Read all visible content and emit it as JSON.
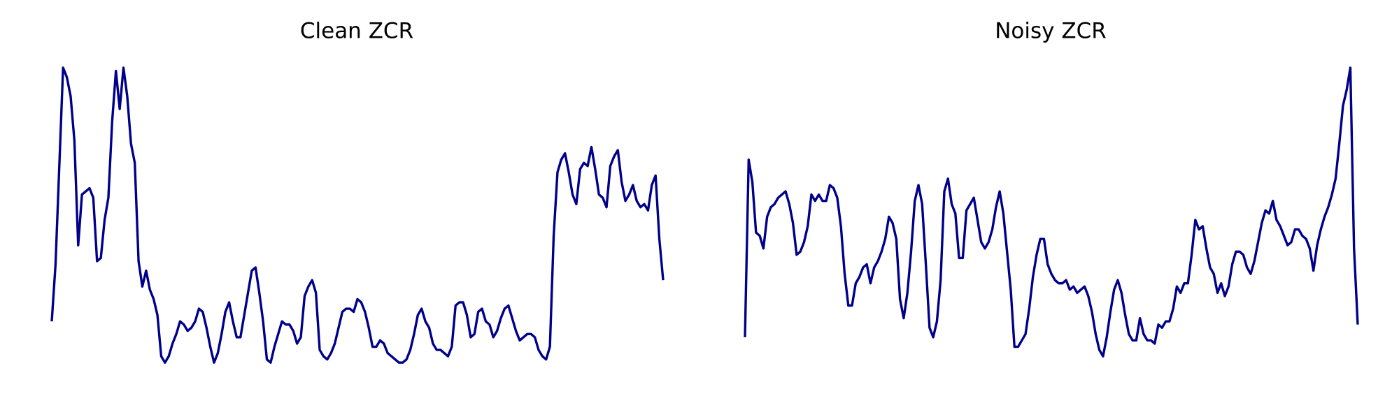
{
  "chart_data": [
    {
      "type": "line",
      "title": "Clean ZCR",
      "xlabel": "",
      "ylabel": "",
      "axes_visible": false,
      "grid": false,
      "legend": "none",
      "color": "#00008B",
      "ylim": [
        0,
        1
      ],
      "series": [
        {
          "values": [
            0.2,
            0.38,
            0.69,
            1.0,
            0.97,
            0.91,
            0.77,
            0.44,
            0.6,
            0.61,
            0.62,
            0.59,
            0.39,
            0.4,
            0.52,
            0.59,
            0.83,
            0.99,
            0.87,
            1.0,
            0.91,
            0.76,
            0.7,
            0.39,
            0.31,
            0.36,
            0.3,
            0.27,
            0.22,
            0.09,
            0.07,
            0.09,
            0.13,
            0.16,
            0.2,
            0.19,
            0.17,
            0.18,
            0.2,
            0.24,
            0.23,
            0.18,
            0.12,
            0.07,
            0.1,
            0.16,
            0.23,
            0.26,
            0.2,
            0.15,
            0.15,
            0.22,
            0.29,
            0.36,
            0.37,
            0.29,
            0.2,
            0.08,
            0.07,
            0.12,
            0.16,
            0.2,
            0.19,
            0.19,
            0.17,
            0.13,
            0.15,
            0.28,
            0.31,
            0.33,
            0.29,
            0.11,
            0.09,
            0.08,
            0.1,
            0.13,
            0.18,
            0.23,
            0.24,
            0.24,
            0.23,
            0.27,
            0.26,
            0.23,
            0.18,
            0.12,
            0.12,
            0.14,
            0.13,
            0.1,
            0.09,
            0.08,
            0.07,
            0.07,
            0.08,
            0.11,
            0.16,
            0.22,
            0.24,
            0.2,
            0.18,
            0.13,
            0.11,
            0.11,
            0.1,
            0.09,
            0.12,
            0.25,
            0.26,
            0.26,
            0.22,
            0.15,
            0.16,
            0.23,
            0.24,
            0.2,
            0.19,
            0.15,
            0.17,
            0.21,
            0.24,
            0.25,
            0.21,
            0.17,
            0.14,
            0.15,
            0.16,
            0.16,
            0.15,
            0.11,
            0.09,
            0.08,
            0.12,
            0.47,
            0.67,
            0.71,
            0.73,
            0.67,
            0.6,
            0.57,
            0.68,
            0.7,
            0.69,
            0.75,
            0.68,
            0.6,
            0.59,
            0.56,
            0.69,
            0.72,
            0.74,
            0.64,
            0.58,
            0.6,
            0.63,
            0.58,
            0.56,
            0.57,
            0.55,
            0.63,
            0.66,
            0.46,
            0.33
          ]
        }
      ]
    },
    {
      "type": "line",
      "title": "Noisy ZCR",
      "xlabel": "",
      "ylabel": "",
      "axes_visible": false,
      "grid": false,
      "legend": "none",
      "color": "#00008B",
      "ylim": [
        0,
        1
      ],
      "series": [
        {
          "values": [
            0.15,
            0.71,
            0.64,
            0.48,
            0.47,
            0.43,
            0.53,
            0.56,
            0.57,
            0.59,
            0.6,
            0.61,
            0.57,
            0.51,
            0.41,
            0.42,
            0.45,
            0.5,
            0.6,
            0.58,
            0.6,
            0.58,
            0.58,
            0.63,
            0.62,
            0.59,
            0.5,
            0.35,
            0.25,
            0.25,
            0.32,
            0.34,
            0.37,
            0.38,
            0.32,
            0.37,
            0.39,
            0.42,
            0.46,
            0.53,
            0.51,
            0.46,
            0.27,
            0.21,
            0.29,
            0.42,
            0.58,
            0.63,
            0.57,
            0.38,
            0.18,
            0.15,
            0.2,
            0.33,
            0.61,
            0.65,
            0.57,
            0.54,
            0.4,
            0.4,
            0.55,
            0.57,
            0.59,
            0.52,
            0.45,
            0.43,
            0.45,
            0.49,
            0.56,
            0.61,
            0.54,
            0.42,
            0.3,
            0.12,
            0.12,
            0.14,
            0.16,
            0.24,
            0.34,
            0.41,
            0.46,
            0.46,
            0.38,
            0.35,
            0.33,
            0.32,
            0.32,
            0.33,
            0.3,
            0.31,
            0.29,
            0.3,
            0.31,
            0.28,
            0.23,
            0.16,
            0.11,
            0.09,
            0.15,
            0.23,
            0.3,
            0.33,
            0.29,
            0.22,
            0.16,
            0.14,
            0.14,
            0.21,
            0.16,
            0.14,
            0.14,
            0.13,
            0.19,
            0.18,
            0.2,
            0.2,
            0.24,
            0.31,
            0.29,
            0.32,
            0.32,
            0.41,
            0.52,
            0.49,
            0.5,
            0.43,
            0.37,
            0.35,
            0.29,
            0.32,
            0.28,
            0.31,
            0.38,
            0.42,
            0.42,
            0.41,
            0.37,
            0.35,
            0.39,
            0.45,
            0.51,
            0.55,
            0.54,
            0.58,
            0.52,
            0.5,
            0.47,
            0.44,
            0.45,
            0.49,
            0.49,
            0.47,
            0.46,
            0.43,
            0.36,
            0.44,
            0.49,
            0.53,
            0.56,
            0.6,
            0.65,
            0.76,
            0.88,
            0.93,
            1.0,
            0.43,
            0.19
          ]
        }
      ]
    }
  ]
}
